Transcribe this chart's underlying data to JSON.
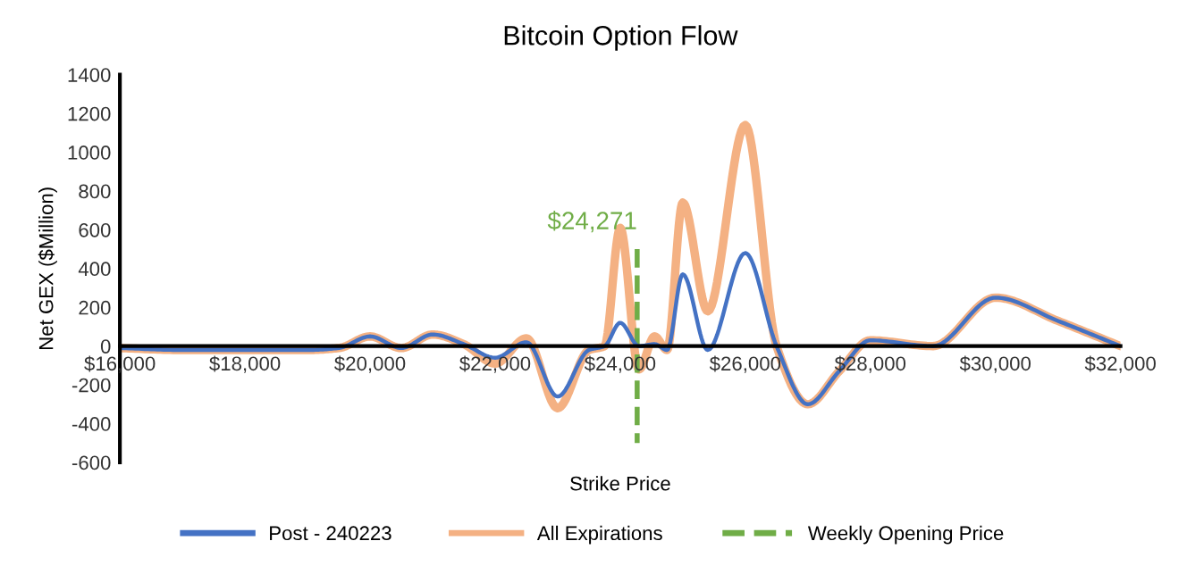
{
  "chart_data": {
    "type": "line",
    "title": "Bitcoin Option Flow",
    "xlabel": "Strike Price",
    "ylabel": "Net GEX ($Million)",
    "x": [
      16000,
      17000,
      18000,
      19000,
      19500,
      20000,
      20500,
      21000,
      21500,
      22000,
      22500,
      23000,
      23500,
      23750,
      24000,
      24300,
      24550,
      24750,
      25000,
      25400,
      26000,
      26500,
      27000,
      27500,
      28000,
      29000,
      30000,
      31000,
      32000
    ],
    "series": [
      {
        "name": "Post - 240223",
        "color": "#4472c4",
        "values": [
          -10,
          -20,
          -20,
          -20,
          -10,
          50,
          -10,
          60,
          10,
          -60,
          20,
          -260,
          -20,
          0,
          120,
          0,
          10,
          -20,
          370,
          -20,
          480,
          0,
          -300,
          -130,
          30,
          0,
          250,
          130,
          0
        ]
      },
      {
        "name": "All Expirations",
        "color": "#f4b183",
        "values": [
          -10,
          -20,
          -20,
          -20,
          -10,
          50,
          -10,
          60,
          10,
          -90,
          40,
          -320,
          -20,
          0,
          610,
          -120,
          50,
          -20,
          740,
          180,
          1140,
          0,
          -300,
          -130,
          30,
          0,
          250,
          130,
          0
        ]
      },
      {
        "name": "Weekly Opening Price",
        "color": "#70ad47",
        "line_style": "dashed",
        "x": [
          24271,
          24271
        ],
        "values": [
          500,
          -500
        ]
      }
    ],
    "annotations": [
      {
        "text": "$24,271",
        "x": 24271,
        "y": 500
      }
    ],
    "xlim": [
      16000,
      32000
    ],
    "xticks": [
      {
        "value": 16000,
        "label": "$16,000"
      },
      {
        "value": 18000,
        "label": "$18,000"
      },
      {
        "value": 20000,
        "label": "$20,000"
      },
      {
        "value": 22000,
        "label": "$22,000"
      },
      {
        "value": 24000,
        "label": "$24,000"
      },
      {
        "value": 26000,
        "label": "$26,000"
      },
      {
        "value": 28000,
        "label": "$28,000"
      },
      {
        "value": 30000,
        "label": "$30,000"
      },
      {
        "value": 32000,
        "label": "$32,000"
      }
    ],
    "ylim": [
      -600,
      1400
    ],
    "yticks": [
      -600,
      -400,
      -200,
      0,
      200,
      400,
      600,
      800,
      1000,
      1200,
      1400
    ],
    "grid": false,
    "legend": "bottom",
    "line_style": "solid",
    "marker": "none"
  }
}
